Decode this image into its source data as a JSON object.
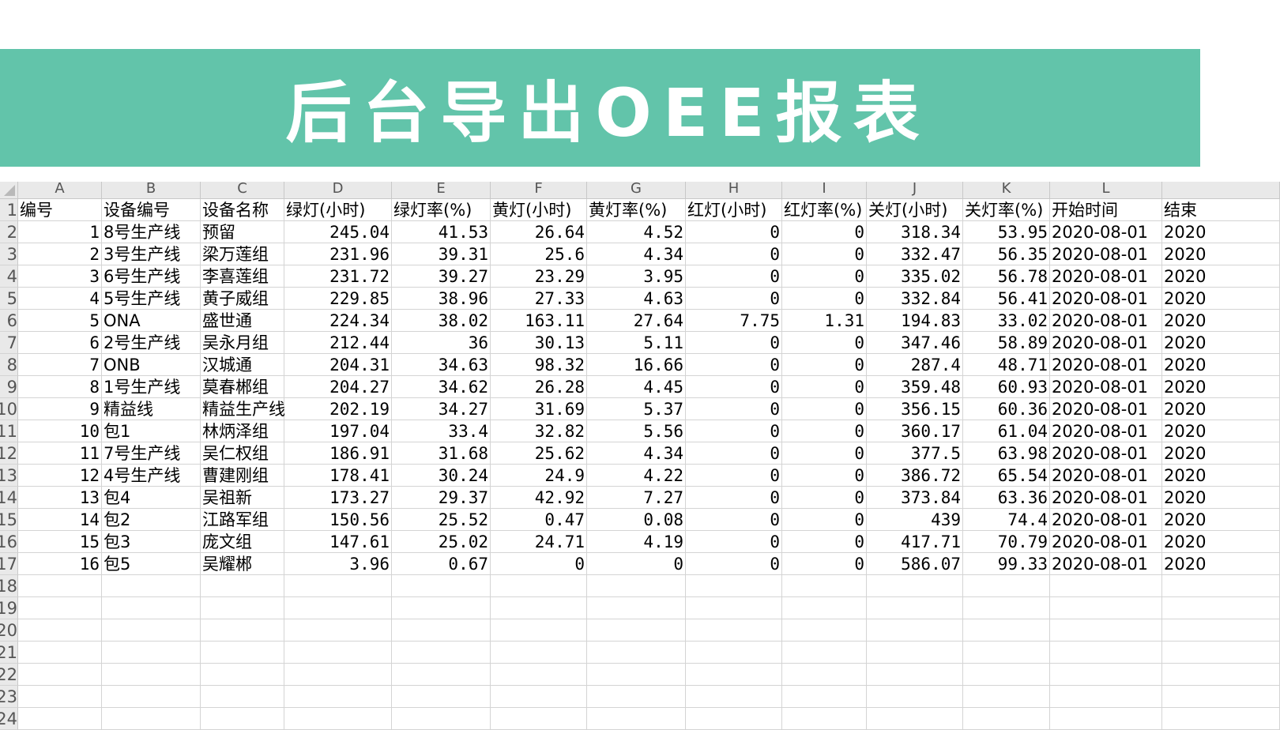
{
  "banner": {
    "title": "后台导出OEE报表",
    "color": "#62c4aa"
  },
  "sheet": {
    "column_letters": [
      "A",
      "B",
      "C",
      "D",
      "E",
      "F",
      "G",
      "H",
      "I",
      "J",
      "K",
      "L",
      ""
    ],
    "row_numbers": [
      "1",
      "2",
      "3",
      "4",
      "5",
      "6",
      "7",
      "8",
      "9",
      "10",
      "11",
      "12",
      "13",
      "14",
      "15",
      "16",
      "17",
      "18",
      "19",
      "20",
      "21",
      "22",
      "23",
      "24"
    ],
    "headers": [
      "编号",
      "设备编号",
      "设备名称",
      "绿灯(小时)",
      "绿灯率(%)",
      "黄灯(小时)",
      "黄灯率(%)",
      "红灯(小时)",
      "红灯率(%)",
      "关灯(小时)",
      "关灯率(%)",
      "开始时间",
      "结束"
    ],
    "rows": [
      [
        "1",
        "8号生产线",
        "预留",
        "245.04",
        "41.53",
        "26.64",
        "4.52",
        "0",
        "0",
        "318.34",
        "53.95",
        "2020-08-01",
        "2020"
      ],
      [
        "2",
        "3号生产线",
        "梁万莲组",
        "231.96",
        "39.31",
        "25.6",
        "4.34",
        "0",
        "0",
        "332.47",
        "56.35",
        "2020-08-01",
        "2020"
      ],
      [
        "3",
        "6号生产线",
        "李喜莲组",
        "231.72",
        "39.27",
        "23.29",
        "3.95",
        "0",
        "0",
        "335.02",
        "56.78",
        "2020-08-01",
        "2020"
      ],
      [
        "4",
        "5号生产线",
        "黄子威组",
        "229.85",
        "38.96",
        "27.33",
        "4.63",
        "0",
        "0",
        "332.84",
        "56.41",
        "2020-08-01",
        "2020"
      ],
      [
        "5",
        "ONA",
        "盛世通",
        "224.34",
        "38.02",
        "163.11",
        "27.64",
        "7.75",
        "1.31",
        "194.83",
        "33.02",
        "2020-08-01",
        "2020"
      ],
      [
        "6",
        "2号生产线",
        "吴永月组",
        "212.44",
        "36",
        "30.13",
        "5.11",
        "0",
        "0",
        "347.46",
        "58.89",
        "2020-08-01",
        "2020"
      ],
      [
        "7",
        "ONB",
        "汉城通",
        "204.31",
        "34.63",
        "98.32",
        "16.66",
        "0",
        "0",
        "287.4",
        "48.71",
        "2020-08-01",
        "2020"
      ],
      [
        "8",
        "1号生产线",
        "莫春郴组",
        "204.27",
        "34.62",
        "26.28",
        "4.45",
        "0",
        "0",
        "359.48",
        "60.93",
        "2020-08-01",
        "2020"
      ],
      [
        "9",
        "精益线",
        "精益生产线",
        "202.19",
        "34.27",
        "31.69",
        "5.37",
        "0",
        "0",
        "356.15",
        "60.36",
        "2020-08-01",
        "2020"
      ],
      [
        "10",
        "包1",
        "林炳泽组",
        "197.04",
        "33.4",
        "32.82",
        "5.56",
        "0",
        "0",
        "360.17",
        "61.04",
        "2020-08-01",
        "2020"
      ],
      [
        "11",
        "7号生产线",
        "吴仁权组",
        "186.91",
        "31.68",
        "25.62",
        "4.34",
        "0",
        "0",
        "377.5",
        "63.98",
        "2020-08-01",
        "2020"
      ],
      [
        "12",
        "4号生产线",
        "曹建刚组",
        "178.41",
        "30.24",
        "24.9",
        "4.22",
        "0",
        "0",
        "386.72",
        "65.54",
        "2020-08-01",
        "2020"
      ],
      [
        "13",
        "包4",
        "吴祖新",
        "173.27",
        "29.37",
        "42.92",
        "7.27",
        "0",
        "0",
        "373.84",
        "63.36",
        "2020-08-01",
        "2020"
      ],
      [
        "14",
        "包2",
        "江路军组",
        "150.56",
        "25.52",
        "0.47",
        "0.08",
        "0",
        "0",
        "439",
        "74.4",
        "2020-08-01",
        "2020"
      ],
      [
        "15",
        "包3",
        "庞文组",
        "147.61",
        "25.02",
        "24.71",
        "4.19",
        "0",
        "0",
        "417.71",
        "70.79",
        "2020-08-01",
        "2020"
      ],
      [
        "16",
        "包5",
        "吴耀郴",
        "3.96",
        "0.67",
        "0",
        "0",
        "0",
        "0",
        "586.07",
        "99.33",
        "2020-08-01",
        "2020"
      ]
    ]
  }
}
